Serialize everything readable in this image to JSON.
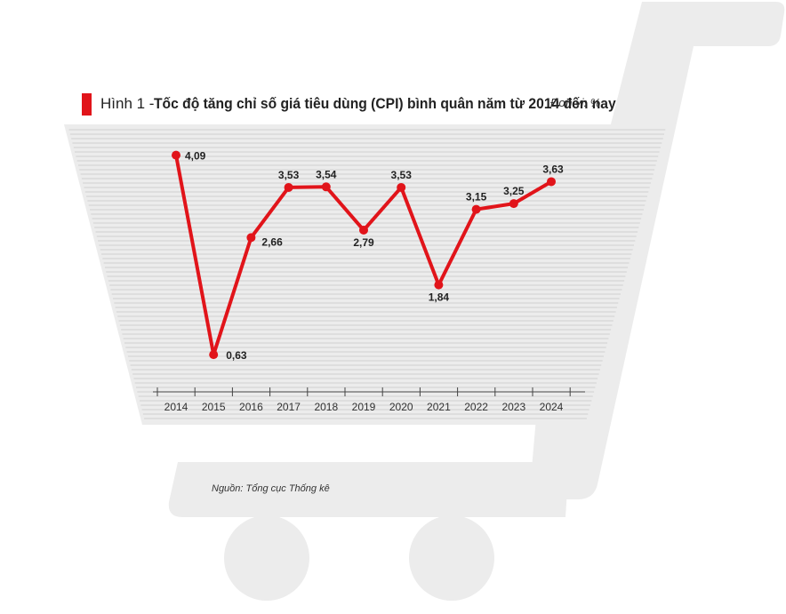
{
  "title": {
    "prefix": "Hình 1 - ",
    "text": "Tốc độ tăng chỉ số giá tiêu dùng (CPI) bình quân năm từ 2014 đến nay"
  },
  "unit_label": "Đơn vị: %",
  "source": "Nguồn: Tổng cục Thống kê",
  "colors": {
    "accent": "#e1141a",
    "cart": "#ececec",
    "stripes": "#cfcfcf"
  },
  "chart_data": {
    "type": "line",
    "title": "Tốc độ tăng chỉ số giá tiêu dùng (CPI) bình quân năm từ 2014 đến nay",
    "xlabel": "",
    "ylabel": "",
    "categories": [
      "2014",
      "2015",
      "2016",
      "2017",
      "2018",
      "2019",
      "2020",
      "2021",
      "2022",
      "2023",
      "2024"
    ],
    "series": [
      {
        "values": [
          4.09,
          0.63,
          2.66,
          3.53,
          3.54,
          2.79,
          3.53,
          1.84,
          3.15,
          3.25,
          3.63
        ]
      }
    ],
    "data_labels": [
      "4,09",
      "0,63",
      "2,66",
      "3,53",
      "3,54",
      "2,79",
      "3,53",
      "1,84",
      "3,15",
      "3,25",
      "3,63"
    ],
    "ylim": [
      0,
      4.5
    ],
    "grid": true,
    "legend": "none"
  }
}
